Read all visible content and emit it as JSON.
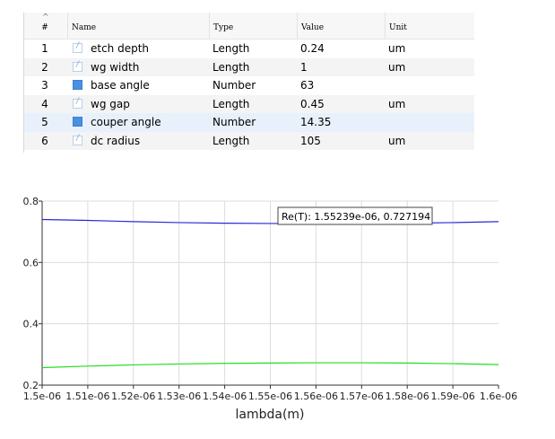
{
  "table": {
    "headers": {
      "index": "#",
      "name": "Name",
      "type": "Type",
      "value": "Value",
      "unit": "Unit"
    },
    "rows": [
      {
        "index": "1",
        "icon": "length-icon",
        "name": "etch depth",
        "type": "Length",
        "value": "0.24",
        "unit": "um"
      },
      {
        "index": "2",
        "icon": "length-icon",
        "name": "wg width",
        "type": "Length",
        "value": "1",
        "unit": "um"
      },
      {
        "index": "3",
        "icon": "number-icon",
        "name": "base angle",
        "type": "Number",
        "value": "63",
        "unit": ""
      },
      {
        "index": "4",
        "icon": "length-icon",
        "name": "wg gap",
        "type": "Length",
        "value": "0.45",
        "unit": "um"
      },
      {
        "index": "5",
        "icon": "number-icon",
        "name": "couper angle",
        "type": "Number",
        "value": "14.35",
        "unit": ""
      },
      {
        "index": "6",
        "icon": "length-icon",
        "name": "dc radius",
        "type": "Length",
        "value": "105",
        "unit": "um"
      }
    ],
    "selected_row": 4
  },
  "chart_data": {
    "type": "line",
    "xlabel": "lambda(m)",
    "ylabel": "",
    "xlim": [
      1.5e-06,
      1.6e-06
    ],
    "ylim": [
      0.2,
      0.8
    ],
    "grid": true,
    "x_tick_labels": [
      "1.5e-06",
      "1.51e-06",
      "1.52e-06",
      "1.53e-06",
      "1.54e-06",
      "1.55e-06",
      "1.56e-06",
      "1.57e-06",
      "1.58e-06",
      "1.59e-06",
      "1.6e-06"
    ],
    "y_tick_labels": [
      "0.2",
      "0.4",
      "0.6",
      "0.8"
    ],
    "x": [
      1.5e-06,
      1.51e-06,
      1.52e-06,
      1.53e-06,
      1.54e-06,
      1.55e-06,
      1.56e-06,
      1.57e-06,
      1.58e-06,
      1.59e-06,
      1.6e-06
    ],
    "series": [
      {
        "color": "#2a2ad8",
        "values": [
          0.74,
          0.737,
          0.733,
          0.73,
          0.728,
          0.727,
          0.727,
          0.727,
          0.728,
          0.73,
          0.733
        ]
      },
      {
        "color": "#22dd22",
        "values": [
          0.257,
          0.262,
          0.266,
          0.269,
          0.271,
          0.272,
          0.273,
          0.273,
          0.272,
          0.27,
          0.267
        ]
      }
    ],
    "tooltip": {
      "text": "Re(T): 1.55239e-06, 0.727194",
      "x": 1.55239e-06,
      "y": 0.727194
    }
  }
}
